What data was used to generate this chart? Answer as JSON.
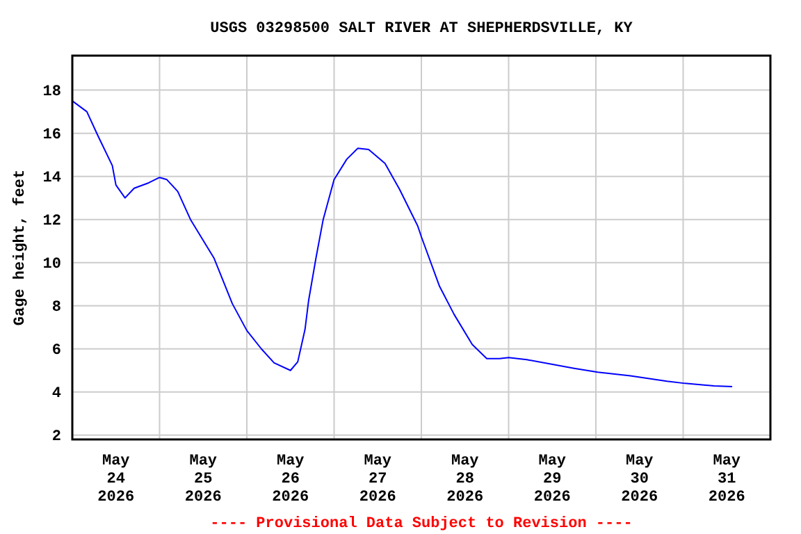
{
  "chart_data": {
    "type": "line",
    "title": "USGS 03298500 SALT RIVER AT SHEPHERDSVILLE, KY",
    "ylabel": "Gage height, feet",
    "annotations": [
      "---- Provisional Data Subject to Revision ----"
    ],
    "x": [
      "2026-05-24T00:00",
      "2026-05-24T04:00",
      "2026-05-24T07:00",
      "2026-05-24T11:00",
      "2026-05-24T12:00",
      "2026-05-24T14:30",
      "2026-05-24T17:00",
      "2026-05-24T21:00",
      "2026-05-25T00:00",
      "2026-05-25T02:00",
      "2026-05-25T05:00",
      "2026-05-25T08:30",
      "2026-05-25T15:00",
      "2026-05-25T20:00",
      "2026-05-26T00:00",
      "2026-05-26T04:00",
      "2026-05-26T07:30",
      "2026-05-26T12:00",
      "2026-05-26T14:00",
      "2026-05-26T16:00",
      "2026-05-26T17:00",
      "2026-05-26T19:00",
      "2026-05-26T21:00",
      "2026-05-27T00:00",
      "2026-05-27T03:30",
      "2026-05-27T06:30",
      "2026-05-27T09:30",
      "2026-05-27T14:00",
      "2026-05-27T18:00",
      "2026-05-27T23:00",
      "2026-05-28T00:00",
      "2026-05-28T05:00",
      "2026-05-28T09:00",
      "2026-05-28T14:00",
      "2026-05-28T18:00",
      "2026-05-28T21:30",
      "2026-05-29T00:00",
      "2026-05-29T05:00",
      "2026-05-29T18:00",
      "2026-05-30T00:30",
      "2026-05-30T09:30",
      "2026-05-30T19:30",
      "2026-05-31T00:30",
      "2026-05-31T08:30",
      "2026-05-31T13:30"
    ],
    "series": [
      {
        "color": "#0000ff",
        "values": [
          17.5,
          17.0,
          15.9,
          14.5,
          13.6,
          13.0,
          13.45,
          13.7,
          13.95,
          13.85,
          13.3,
          12.0,
          10.2,
          8.1,
          6.85,
          6.0,
          5.35,
          5.0,
          5.4,
          6.9,
          8.25,
          10.2,
          12.0,
          13.85,
          14.8,
          15.3,
          15.25,
          14.6,
          13.4,
          11.7,
          11.2,
          8.9,
          7.6,
          6.2,
          5.55,
          5.55,
          5.6,
          5.5,
          5.1,
          4.92,
          4.75,
          4.5,
          4.4,
          4.28,
          4.25
        ]
      }
    ],
    "xlim": [
      "2026-05-24T00:00",
      "2026-06-01T00:00"
    ],
    "xticks": [
      {
        "value": "2026-05-24T12:00",
        "label": "May\n24\n2026"
      },
      {
        "value": "2026-05-25T00:00",
        "label": null
      },
      {
        "value": "2026-05-25T12:00",
        "label": "May\n25\n2026"
      },
      {
        "value": "2026-05-26T00:00",
        "label": null
      },
      {
        "value": "2026-05-26T12:00",
        "label": "May\n26\n2026"
      },
      {
        "value": "2026-05-27T00:00",
        "label": null
      },
      {
        "value": "2026-05-27T12:00",
        "label": "May\n27\n2026"
      },
      {
        "value": "2026-05-28T00:00",
        "label": null
      },
      {
        "value": "2026-05-28T12:00",
        "label": "May\n28\n2026"
      },
      {
        "value": "2026-05-29T00:00",
        "label": null
      },
      {
        "value": "2026-05-29T12:00",
        "label": "May\n29\n2026"
      },
      {
        "value": "2026-05-30T00:00",
        "label": null
      },
      {
        "value": "2026-05-30T12:00",
        "label": "May\n30\n2026"
      },
      {
        "value": "2026-05-31T00:00",
        "label": null
      },
      {
        "value": "2026-05-31T12:00",
        "label": "May\n31\n2026"
      }
    ],
    "ylim": [
      1.8,
      19.6
    ],
    "yticks": [
      2,
      4,
      6,
      8,
      10,
      12,
      14,
      16,
      18
    ],
    "grid": true
  }
}
